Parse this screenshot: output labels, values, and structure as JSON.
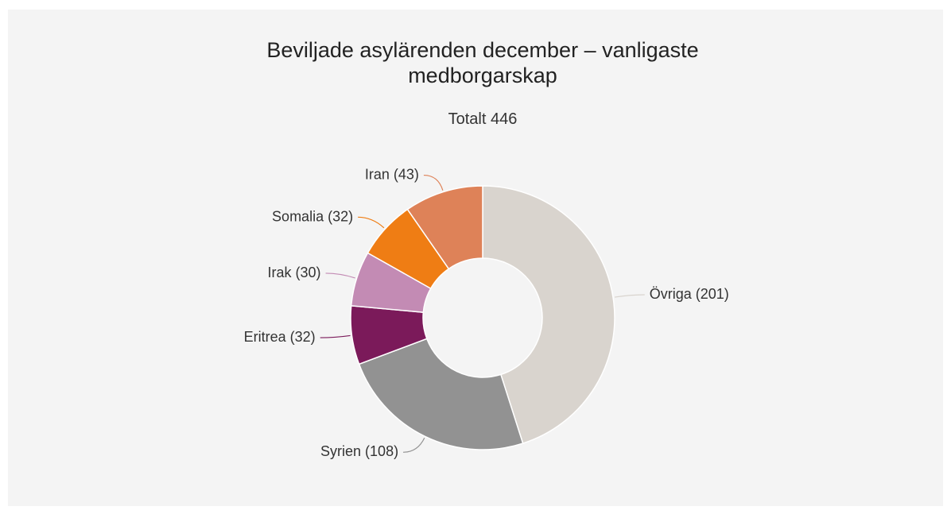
{
  "chart_data": {
    "type": "donut",
    "title": "Beviljade asylärenden december – vanligaste medborgarskap",
    "subtitle": "Totalt 446",
    "categories": [
      "Övriga",
      "Syrien",
      "Eritrea",
      "Irak",
      "Somalia",
      "Iran"
    ],
    "values": [
      201,
      108,
      32,
      30,
      32,
      43
    ],
    "value_labels": [
      "(201)",
      "(108)",
      "(32)",
      "(30)",
      "(32)",
      "(43)"
    ],
    "colors": [
      "#d9d4ce",
      "#929292",
      "#7b1a5a",
      "#c38bb4",
      "#ef7d14",
      "#de8258"
    ]
  }
}
